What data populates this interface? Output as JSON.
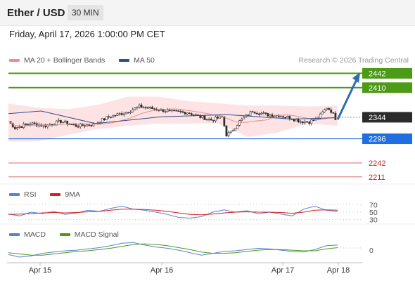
{
  "header": {
    "pair": "Ether / USD",
    "interval": "30 MIN",
    "datetime": "Friday, April 17, 2026 1:00:00 PM CET"
  },
  "legend": {
    "ma20": "MA 20 + Bollinger Bands",
    "ma50": "MA 50",
    "rsi": "RSI",
    "rsi_ma": "9MA",
    "macd": "MACD",
    "macd_signal": "MACD Signal"
  },
  "copyright": "Research © 2026 Trading Central",
  "colors": {
    "ma20": "#f28c8c",
    "ma50": "#2e4f8f",
    "bollinger_fill": "#fde0e0",
    "resistance": "#4c9a16",
    "current": "#2b2b2b",
    "pivot": "#1f6fe0",
    "support": "#e06b6b",
    "support_text": "#cc2222",
    "arrow": "#2e6db4",
    "rsi": "#5b7fd6",
    "rsi_ma": "#d62020",
    "macd": "#5b7fd6",
    "macd_signal": "#4c9a16"
  },
  "chart_data": [
    {
      "type": "candlestick",
      "title": "Ether / USD",
      "interval": "30 MIN",
      "x_ticks": [
        "Apr 15",
        "Apr 16",
        "Apr 17",
        "Apr 18"
      ],
      "ylim": [
        2195,
        2452
      ],
      "price_levels": [
        {
          "value": 2442,
          "label": "2442",
          "kind": "resistance"
        },
        {
          "value": 2410,
          "label": "2410",
          "kind": "resistance"
        },
        {
          "value": 2344,
          "label": "2344",
          "kind": "current"
        },
        {
          "value": 2296,
          "label": "2296",
          "kind": "pivot"
        },
        {
          "value": 2242,
          "label": "2242",
          "kind": "support"
        },
        {
          "value": 2211,
          "label": "2211",
          "kind": "support"
        }
      ],
      "forecast_arrow": {
        "from": 2339,
        "to": 2444
      },
      "series": [
        {
          "name": "MA 20 + Bollinger Bands",
          "values_from": "close_path",
          "close_path": [
            {
              "x": 0,
              "y": 2335
            },
            {
              "x": 3,
              "y": 2320
            },
            {
              "x": 10,
              "y": 2330
            },
            {
              "x": 17,
              "y": 2325
            },
            {
              "x": 24,
              "y": 2335
            },
            {
              "x": 31,
              "y": 2325
            },
            {
              "x": 39,
              "y": 2328
            },
            {
              "x": 46,
              "y": 2345
            },
            {
              "x": 54,
              "y": 2355
            },
            {
              "x": 60,
              "y": 2368
            },
            {
              "x": 68,
              "y": 2362
            },
            {
              "x": 75,
              "y": 2356
            },
            {
              "x": 82,
              "y": 2355
            },
            {
              "x": 88,
              "y": 2345
            },
            {
              "x": 93,
              "y": 2338
            },
            {
              "x": 98,
              "y": 2345
            },
            {
              "x": 100,
              "y": 2305
            },
            {
              "x": 102,
              "y": 2310
            },
            {
              "x": 106,
              "y": 2335
            },
            {
              "x": 112,
              "y": 2358
            },
            {
              "x": 118,
              "y": 2350
            },
            {
              "x": 124,
              "y": 2348
            },
            {
              "x": 129,
              "y": 2343
            },
            {
              "x": 134,
              "y": 2335
            },
            {
              "x": 138,
              "y": 2334
            },
            {
              "x": 142,
              "y": 2342
            },
            {
              "x": 146,
              "y": 2366
            },
            {
              "x": 148,
              "y": 2358
            },
            {
              "x": 150,
              "y": 2342
            }
          ]
        },
        {
          "name": "MA 50",
          "close_path": [
            {
              "x": 0,
              "y": 2352
            },
            {
              "x": 15,
              "y": 2358
            },
            {
              "x": 40,
              "y": 2330
            },
            {
              "x": 70,
              "y": 2345
            },
            {
              "x": 100,
              "y": 2350
            },
            {
              "x": 130,
              "y": 2340
            },
            {
              "x": 150,
              "y": 2343
            }
          ]
        }
      ],
      "bollinger": {
        "upper": [
          2375,
          2365,
          2362,
          2372,
          2390,
          2390,
          2380,
          2375,
          2370,
          2370,
          2368,
          2370
        ],
        "lower": [
          2290,
          2290,
          2305,
          2318,
          2325,
          2330,
          2330,
          2330,
          2300,
          2310,
          2330,
          2325
        ]
      }
    },
    {
      "type": "line",
      "name": "RSI",
      "levels": [
        70,
        50,
        30
      ],
      "series": [
        {
          "name": "RSI",
          "values": [
            45,
            40,
            50,
            46,
            52,
            44,
            48,
            55,
            52,
            60,
            66,
            58,
            55,
            50,
            44,
            36,
            34,
            38,
            50,
            56,
            50,
            54,
            46,
            50,
            45,
            40,
            58,
            66,
            55,
            52
          ]
        },
        {
          "name": "9MA",
          "values": [
            44,
            45,
            46,
            48,
            49,
            48,
            49,
            51,
            52,
            55,
            58,
            58,
            57,
            55,
            52,
            48,
            44,
            43,
            45,
            48,
            50,
            51,
            50,
            50,
            49,
            47,
            50,
            55,
            56,
            55
          ]
        }
      ]
    },
    {
      "type": "line",
      "name": "MACD",
      "y_ticks": [
        0
      ],
      "series": [
        {
          "name": "MACD",
          "values": [
            -6,
            -10,
            -8,
            -4,
            -2,
            0,
            1,
            3,
            5,
            8,
            12,
            13,
            9,
            6,
            4,
            1,
            -3,
            -7,
            -4,
            -1,
            0,
            2,
            4,
            3,
            1,
            -1,
            -2,
            2,
            8,
            9
          ]
        },
        {
          "name": "MACD Signal",
          "values": [
            -3,
            -5,
            -7,
            -7,
            -5,
            -3,
            -1,
            0,
            2,
            4,
            7,
            10,
            11,
            10,
            8,
            5,
            2,
            -2,
            -4,
            -4,
            -3,
            -1,
            1,
            2,
            2,
            1,
            0,
            0,
            3,
            5
          ]
        }
      ]
    }
  ]
}
